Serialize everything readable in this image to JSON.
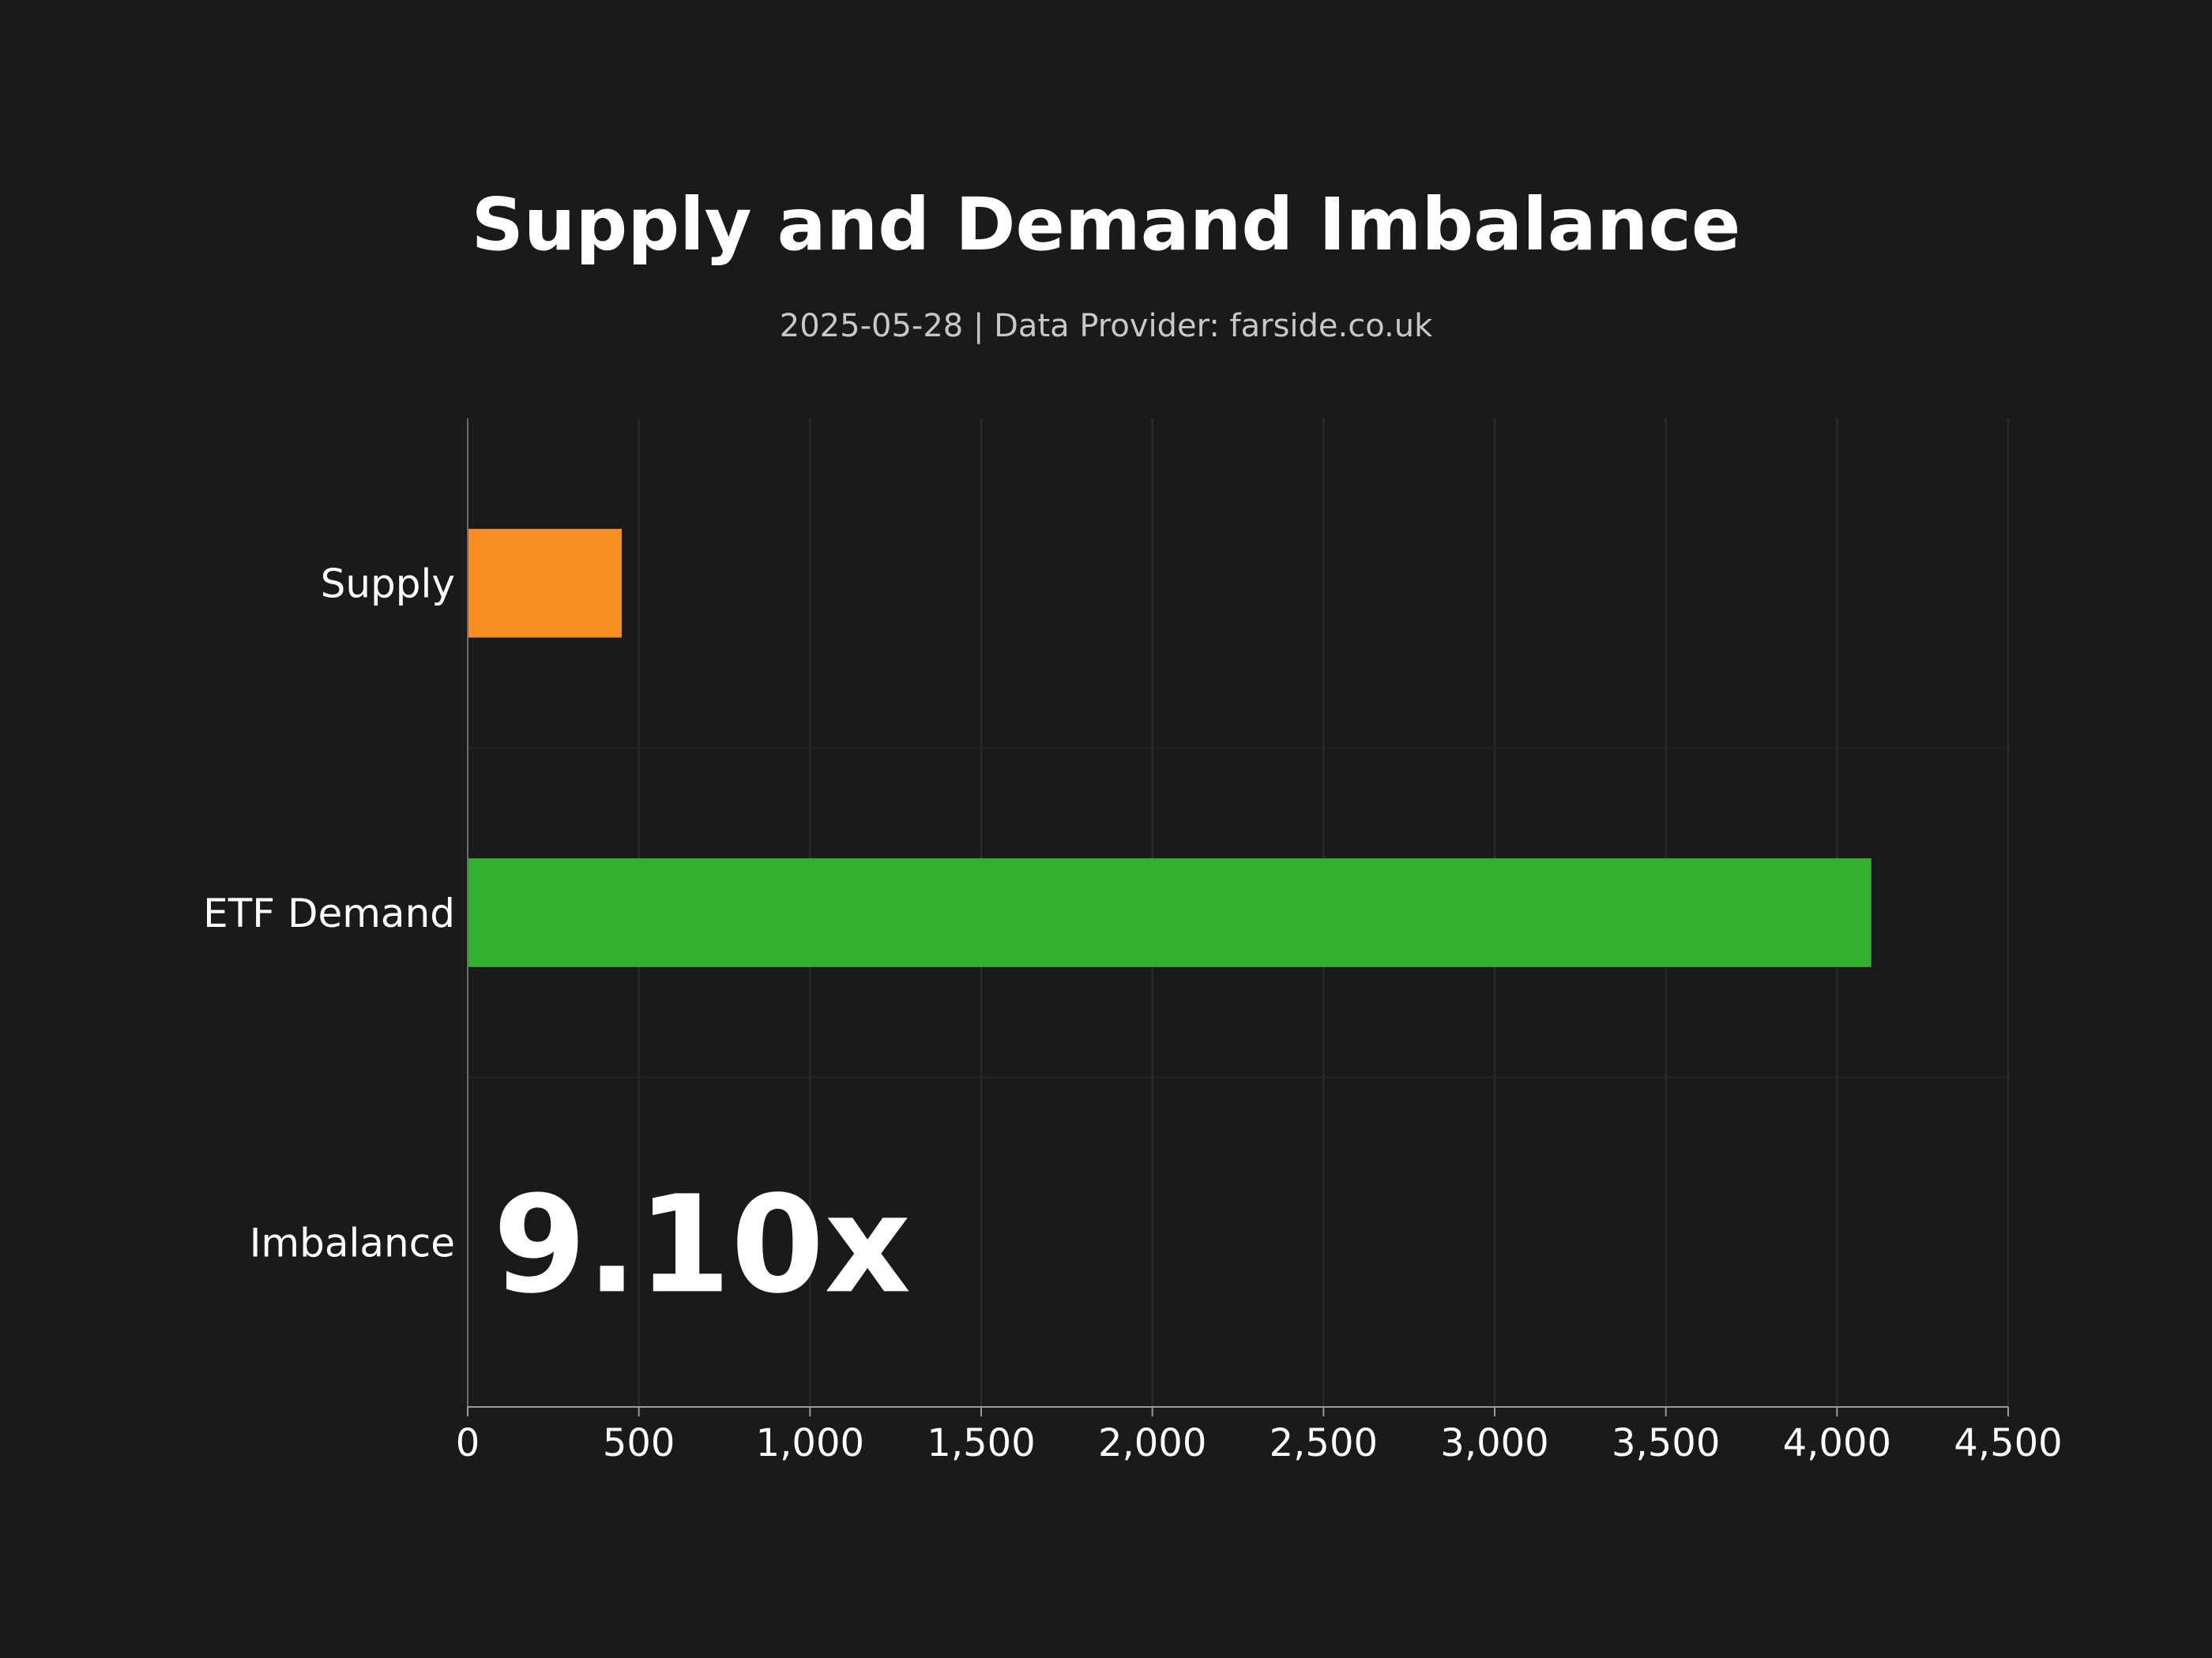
{
  "chart_data": {
    "type": "bar",
    "orientation": "horizontal",
    "title": "Supply and Demand Imbalance",
    "subtitle": "2025-05-28  |  Data Provider: farside.co.uk",
    "categories": [
      "Supply",
      "ETF Demand",
      "Imbalance"
    ],
    "values": [
      450,
      4100,
      null
    ],
    "bar_colors": [
      "#f68e22",
      "#34b030"
    ],
    "imbalance_label": "9.10x",
    "xlim": [
      0,
      4500
    ],
    "x_ticks": [
      0,
      500,
      1000,
      1500,
      2000,
      2500,
      3000,
      3500,
      4000,
      4500
    ],
    "x_tick_labels": [
      "0",
      "500",
      "1,000",
      "1,500",
      "2,000",
      "2,500",
      "3,000",
      "3,500",
      "4,000",
      "4,500"
    ],
    "xlabel": "",
    "ylabel": "",
    "grid": true,
    "legend": "none"
  }
}
